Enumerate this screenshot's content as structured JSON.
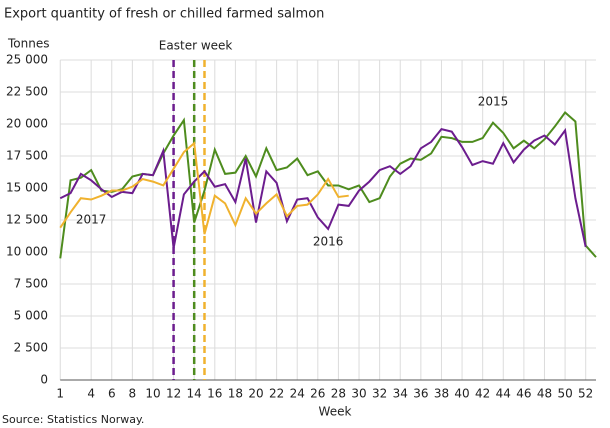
{
  "chart_data": {
    "type": "line",
    "title": "Export quantity of fresh or chilled farmed salmon",
    "y_label": "Tonnes",
    "x_label": "Week",
    "source": "Source: Statistics Norway.",
    "x": [
      1,
      2,
      3,
      4,
      5,
      6,
      7,
      8,
      9,
      10,
      11,
      12,
      13,
      14,
      15,
      16,
      17,
      18,
      19,
      20,
      21,
      22,
      23,
      24,
      25,
      26,
      27,
      28,
      29,
      30,
      31,
      32,
      33,
      34,
      35,
      36,
      37,
      38,
      39,
      40,
      41,
      42,
      43,
      44,
      45,
      46,
      47,
      48,
      49,
      50,
      51,
      52,
      53
    ],
    "series": [
      {
        "name": "2015",
        "color": "#4e8c1e",
        "values": [
          9500,
          15600,
          15800,
          16400,
          14800,
          14700,
          14900,
          15900,
          16100,
          16000,
          17700,
          19100,
          20300,
          12300,
          14800,
          18000,
          16100,
          16200,
          17500,
          15900,
          18100,
          16400,
          16600,
          17300,
          16000,
          16300,
          15200,
          15200,
          14900,
          15200,
          13900,
          14200,
          15900,
          16900,
          17300,
          17200,
          17700,
          19000,
          18900,
          18600,
          18600,
          18900,
          20100,
          19300,
          18100,
          18700,
          18100,
          18800,
          19800,
          20900,
          20200,
          10500,
          9600
        ]
      },
      {
        "name": "2016",
        "color": "#6c1d8e",
        "values": [
          14200,
          14600,
          16100,
          15600,
          14900,
          14300,
          14700,
          14600,
          16100,
          16000,
          17900,
          10300,
          14500,
          15500,
          16300,
          15100,
          15300,
          13900,
          17300,
          12300,
          16300,
          15400,
          12400,
          14100,
          14200,
          12700,
          11800,
          13700,
          13600,
          14800,
          15500,
          16400,
          16700,
          16100,
          16700,
          18100,
          18600,
          19600,
          19400,
          18200,
          16800,
          17100,
          16900,
          18500,
          17000,
          18000,
          18700,
          19100,
          18400,
          19500,
          14200,
          10400,
          null
        ]
      },
      {
        "name": "2017",
        "color": "#f0b22e",
        "values": [
          11900,
          13100,
          14200,
          14100,
          14400,
          14800,
          14800,
          15100,
          15700,
          15500,
          15200,
          16500,
          17800,
          18500,
          11400,
          14400,
          13800,
          12100,
          14200,
          13000,
          13800,
          14500,
          12800,
          13600,
          13700,
          14500,
          15700,
          14300,
          14400,
          null,
          null,
          null,
          null,
          null,
          null,
          null,
          null,
          null,
          null,
          null,
          null,
          null,
          null,
          null,
          null,
          null,
          null,
          null,
          null,
          null,
          null,
          null,
          null
        ]
      }
    ],
    "easter_label": "Easter week",
    "easter_weeks": [
      {
        "x": 12,
        "color": "#6c1d8e"
      },
      {
        "x": 14,
        "color": "#4e8c1e"
      },
      {
        "x": 15,
        "color": "#f0b22e"
      }
    ],
    "xlim": [
      1,
      53
    ],
    "xticks": [
      1,
      4,
      6,
      8,
      10,
      12,
      14,
      16,
      18,
      20,
      22,
      24,
      26,
      28,
      30,
      32,
      34,
      36,
      38,
      40,
      42,
      44,
      46,
      48,
      50,
      52
    ],
    "ylim": [
      0,
      25000
    ],
    "yticks": [
      0,
      {
        "value": 2500,
        "label": "2 500"
      },
      {
        "value": 5000,
        "label": "5 000"
      },
      {
        "value": 7500,
        "label": "7 500"
      },
      {
        "value": 10000,
        "label": "10 000"
      },
      {
        "value": 12500,
        "label": "12 500"
      },
      {
        "value": 15000,
        "label": "15 000"
      },
      {
        "value": 17500,
        "label": "17 500"
      },
      {
        "value": 20000,
        "label": "20 000"
      },
      {
        "value": 22500,
        "label": "22 500"
      },
      {
        "value": 25000,
        "label": "25 000"
      }
    ],
    "grid": true
  }
}
